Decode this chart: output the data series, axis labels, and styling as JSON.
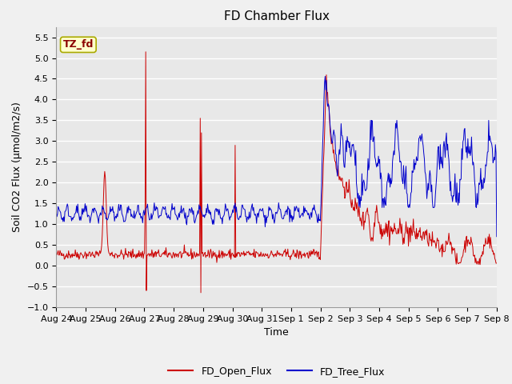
{
  "title": "FD Chamber Flux",
  "xlabel": "Time",
  "ylabel": "Soil CO2 Flux (μmol/m2/s)",
  "ylim": [
    -1.0,
    5.75
  ],
  "yticks": [
    -1.0,
    -0.5,
    0.0,
    0.5,
    1.0,
    1.5,
    2.0,
    2.5,
    3.0,
    3.5,
    4.0,
    4.5,
    5.0,
    5.5
  ],
  "xtick_labels": [
    "Aug 24",
    "Aug 25",
    "Aug 26",
    "Aug 27",
    "Aug 28",
    "Aug 29",
    "Aug 30",
    "Aug 31",
    "Sep 1",
    "Sep 2",
    "Sep 3",
    "Sep 4",
    "Sep 5",
    "Sep 6",
    "Sep 7",
    "Sep 8"
  ],
  "fig_bg_color": "#f0f0f0",
  "plot_bg_color": "#e8e8e8",
  "open_flux_color": "#cc0000",
  "tree_flux_color": "#0000cc",
  "legend_label_open": "FD_Open_Flux",
  "legend_label_tree": "FD_Tree_Flux",
  "annotation_text": "TZ_fd",
  "annotation_bg": "#ffffcc",
  "annotation_border": "#aaaa00",
  "title_fontsize": 11,
  "axis_label_fontsize": 9,
  "tick_fontsize": 8,
  "legend_fontsize": 9
}
